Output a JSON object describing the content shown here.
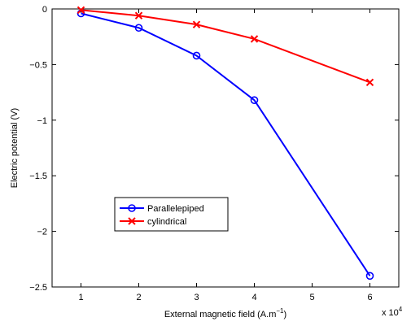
{
  "chart_data": {
    "type": "line",
    "xlabel": "External magnetic field (A.m",
    "xlabel_sup": "−1",
    "xlabel_end": ")",
    "ylabel": "Electric potential (V)",
    "xlim": [
      0.5,
      6.5
    ],
    "ylim": [
      -2.5,
      0
    ],
    "x_ticks": [
      1,
      2,
      3,
      4,
      5,
      6
    ],
    "y_ticks": [
      0,
      -0.5,
      -1,
      -1.5,
      -2,
      -2.5
    ],
    "x_tick_labels": [
      "1",
      "2",
      "3",
      "4",
      "5",
      "6"
    ],
    "y_tick_labels": [
      "0",
      "−0.5",
      "−1",
      "−1.5",
      "−2",
      "−2.5"
    ],
    "x_multiplier": "x 10",
    "x_multiplier_exp": "4",
    "grid": false,
    "legend_position": "lower-left",
    "series": [
      {
        "name": "Parallelepiped",
        "color": "#0000ff",
        "marker": "circle",
        "x": [
          1,
          2,
          3,
          4,
          6
        ],
        "y": [
          -0.04,
          -0.17,
          -0.42,
          -0.82,
          -2.4
        ]
      },
      {
        "name": "cylindrical",
        "color": "#ff0000",
        "marker": "x",
        "x": [
          1,
          2,
          3,
          4,
          6
        ],
        "y": [
          -0.01,
          -0.06,
          -0.14,
          -0.27,
          -0.66
        ]
      }
    ]
  }
}
